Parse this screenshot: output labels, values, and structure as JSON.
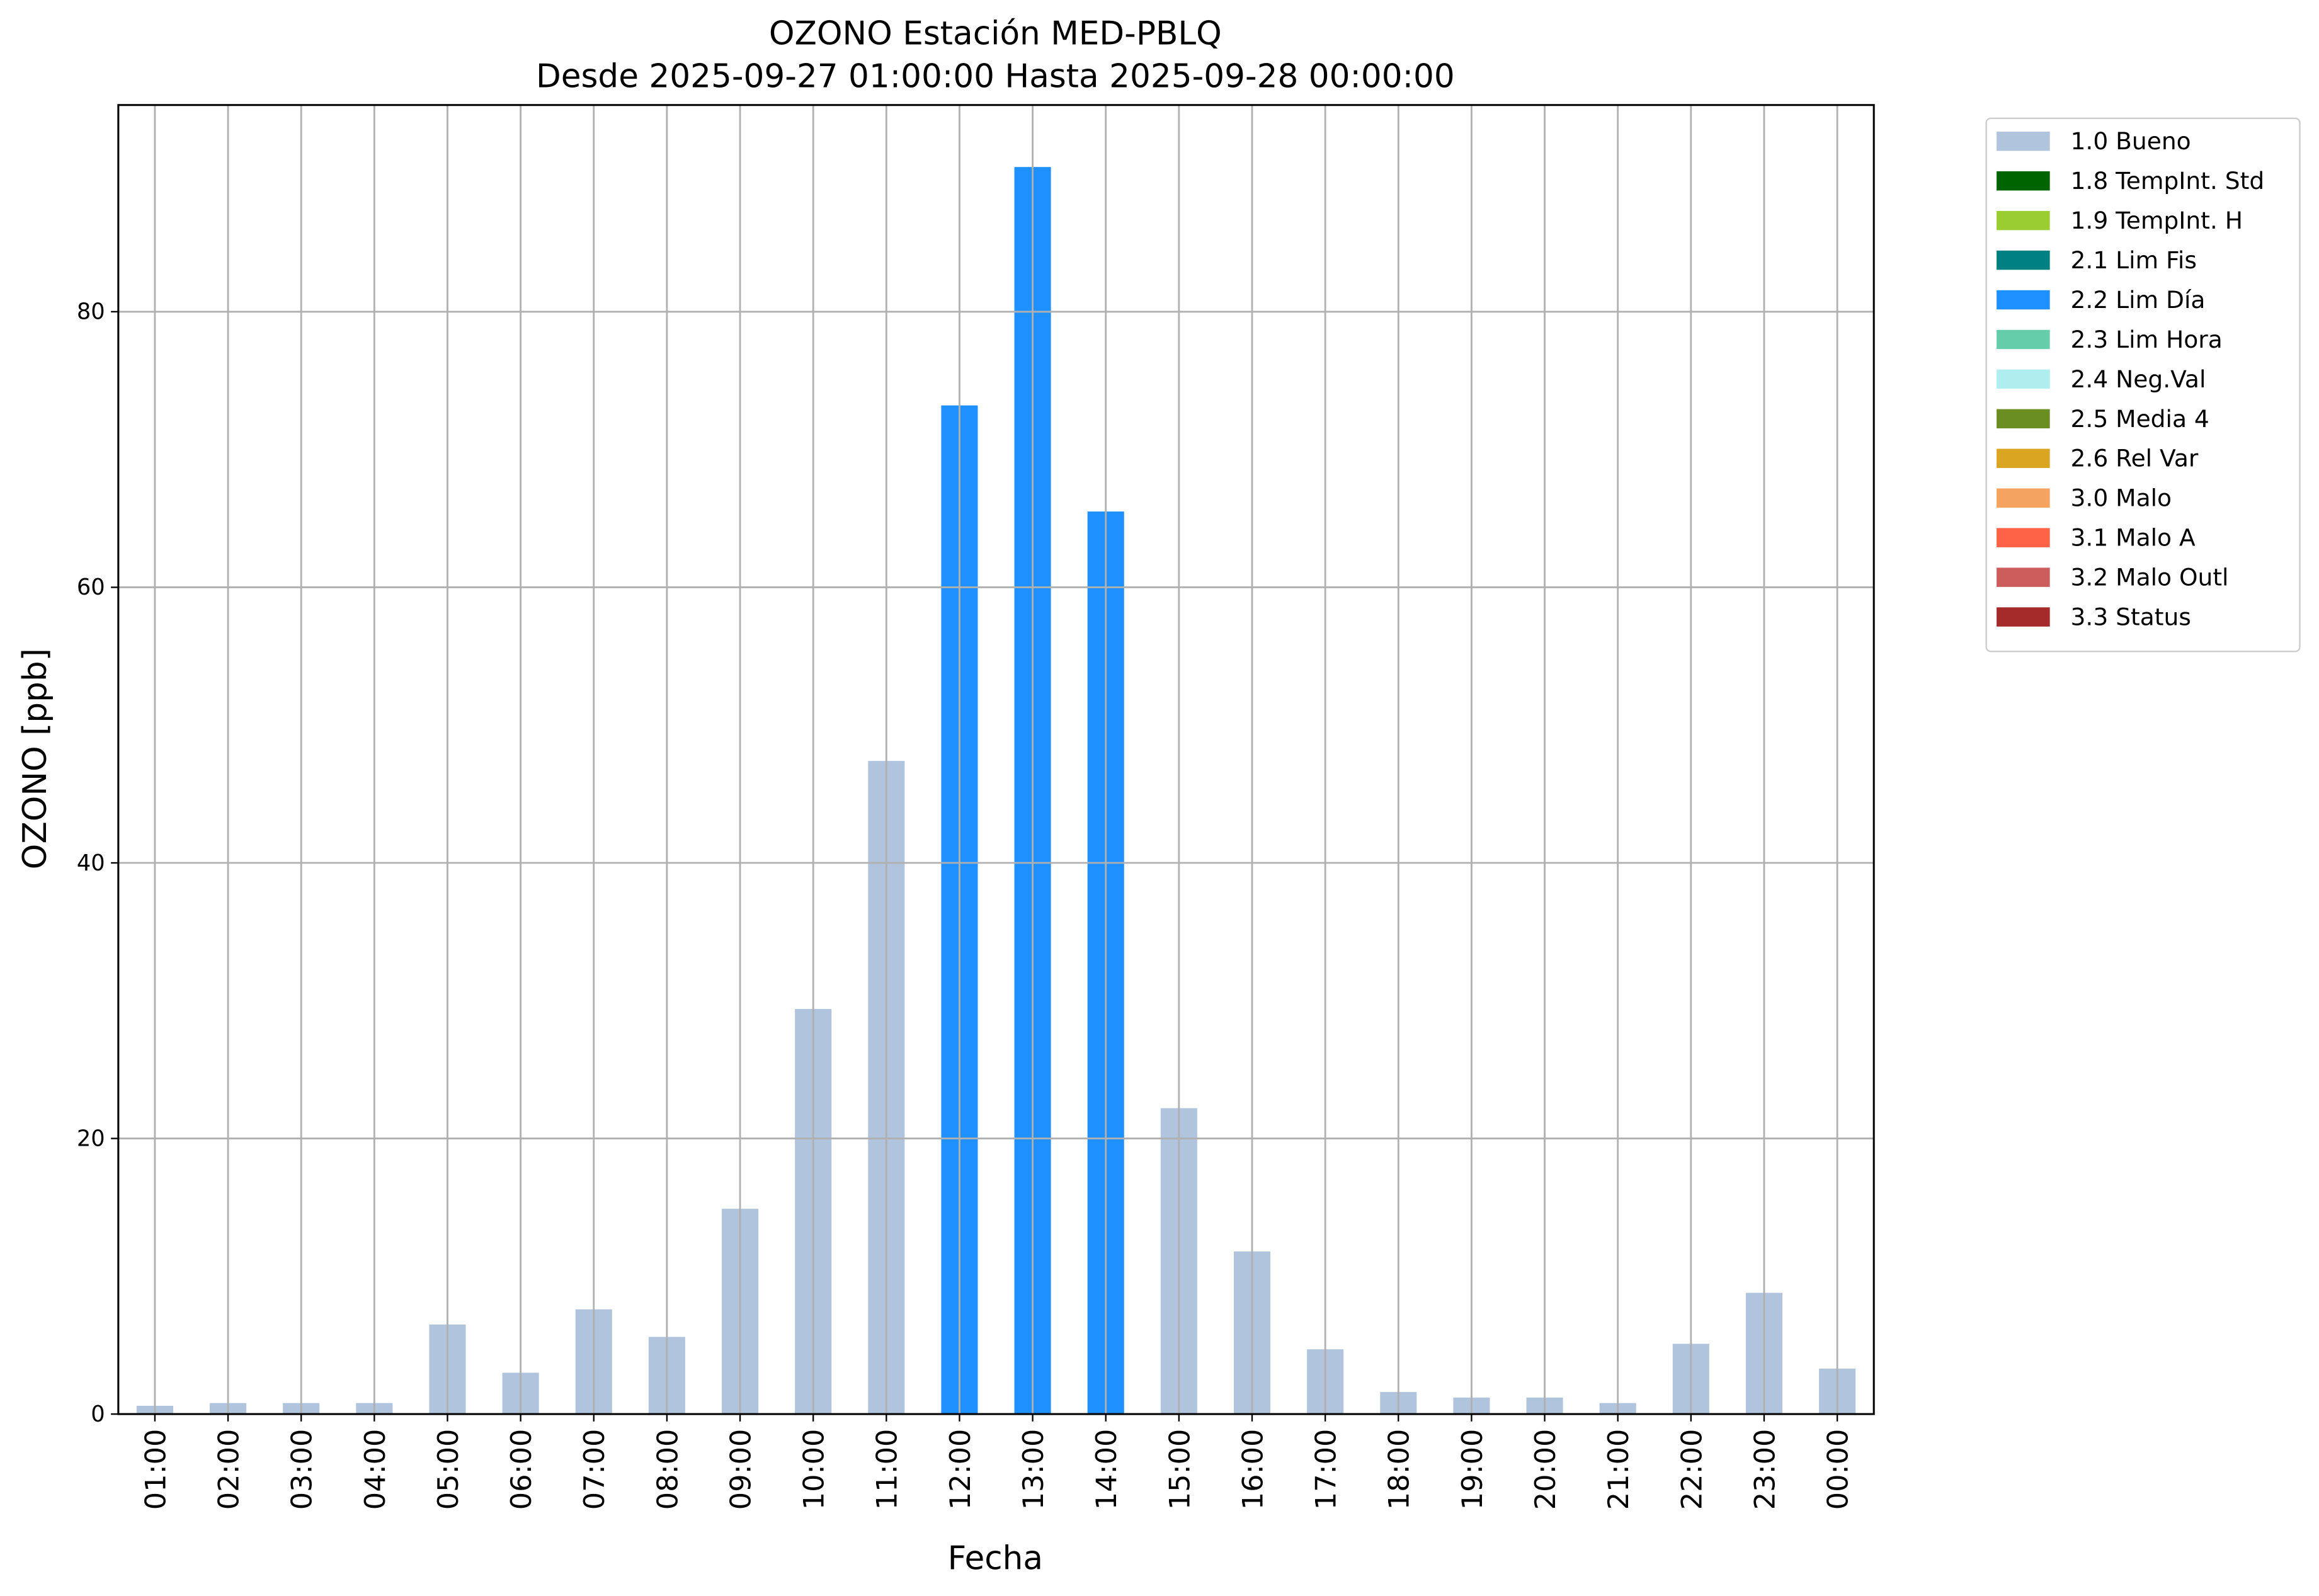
{
  "chart_data": {
    "type": "bar",
    "stacked": true,
    "title": "OZONO Estación MED-PBLQ",
    "subtitle": "Desde 2025-09-27 01:00:00 Hasta 2025-09-28 00:00:00",
    "x_label": "Fecha",
    "y_label": "OZONO [ppb]",
    "categories": [
      "01:00",
      "02:00",
      "03:00",
      "04:00",
      "05:00",
      "06:00",
      "07:00",
      "08:00",
      "09:00",
      "10:00",
      "11:00",
      "12:00",
      "13:00",
      "14:00",
      "15:00",
      "16:00",
      "17:00",
      "18:00",
      "19:00",
      "20:00",
      "21:00",
      "22:00",
      "23:00",
      "00:00"
    ],
    "series": [
      {
        "name": "1.0 Bueno",
        "color": "#b0c4de",
        "values": [
          0.6,
          0.8,
          0.8,
          0.8,
          6.5,
          3.0,
          7.6,
          5.6,
          14.9,
          29.4,
          47.4,
          null,
          null,
          null,
          22.2,
          11.8,
          4.7,
          1.6,
          1.2,
          1.2,
          0.8,
          5.1,
          8.8,
          3.3
        ]
      },
      {
        "name": "1.8 TempInt. Std",
        "color": "#006400",
        "values": [
          null,
          null,
          null,
          null,
          null,
          null,
          null,
          null,
          null,
          null,
          null,
          null,
          null,
          null,
          null,
          null,
          null,
          null,
          null,
          null,
          null,
          null,
          null,
          null
        ]
      },
      {
        "name": "1.9 TempInt. H",
        "color": "#9acd32",
        "values": [
          null,
          null,
          null,
          null,
          null,
          null,
          null,
          null,
          null,
          null,
          null,
          null,
          null,
          null,
          null,
          null,
          null,
          null,
          null,
          null,
          null,
          null,
          null,
          null
        ]
      },
      {
        "name": "2.1 Lim Fis",
        "color": "#008080",
        "values": [
          null,
          null,
          null,
          null,
          null,
          null,
          null,
          null,
          null,
          null,
          null,
          null,
          null,
          null,
          null,
          null,
          null,
          null,
          null,
          null,
          null,
          null,
          null,
          null
        ]
      },
      {
        "name": "2.2 Lim Día",
        "color": "#1e90ff",
        "values": [
          null,
          null,
          null,
          null,
          null,
          null,
          null,
          null,
          null,
          null,
          null,
          73.2,
          90.5,
          65.5,
          null,
          null,
          null,
          null,
          null,
          null,
          null,
          null,
          null,
          null
        ]
      },
      {
        "name": "2.3 Lim Hora",
        "color": "#66cdaa",
        "values": [
          null,
          null,
          null,
          null,
          null,
          null,
          null,
          null,
          null,
          null,
          null,
          null,
          null,
          null,
          null,
          null,
          null,
          null,
          null,
          null,
          null,
          null,
          null,
          null
        ]
      },
      {
        "name": "2.4 Neg.Val",
        "color": "#afeeee",
        "values": [
          null,
          null,
          null,
          null,
          null,
          null,
          null,
          null,
          null,
          null,
          null,
          null,
          null,
          null,
          null,
          null,
          null,
          null,
          null,
          null,
          null,
          null,
          null,
          null
        ]
      },
      {
        "name": "2.5 Media 4",
        "color": "#6b8e23",
        "values": [
          null,
          null,
          null,
          null,
          null,
          null,
          null,
          null,
          null,
          null,
          null,
          null,
          null,
          null,
          null,
          null,
          null,
          null,
          null,
          null,
          null,
          null,
          null,
          null
        ]
      },
      {
        "name": "2.6 Rel Var",
        "color": "#daa520",
        "values": [
          null,
          null,
          null,
          null,
          null,
          null,
          null,
          null,
          null,
          null,
          null,
          null,
          null,
          null,
          null,
          null,
          null,
          null,
          null,
          null,
          null,
          null,
          null,
          null
        ]
      },
      {
        "name": "3.0 Malo",
        "color": "#f4a460",
        "values": [
          null,
          null,
          null,
          null,
          null,
          null,
          null,
          null,
          null,
          null,
          null,
          null,
          null,
          null,
          null,
          null,
          null,
          null,
          null,
          null,
          null,
          null,
          null,
          null
        ]
      },
      {
        "name": "3.1 Malo A",
        "color": "#ff6347",
        "values": [
          null,
          null,
          null,
          null,
          null,
          null,
          null,
          null,
          null,
          null,
          null,
          null,
          null,
          null,
          null,
          null,
          null,
          null,
          null,
          null,
          null,
          null,
          null,
          null
        ]
      },
      {
        "name": "3.2 Malo Outl",
        "color": "#cd5c5c",
        "values": [
          null,
          null,
          null,
          null,
          null,
          null,
          null,
          null,
          null,
          null,
          null,
          null,
          null,
          null,
          null,
          null,
          null,
          null,
          null,
          null,
          null,
          null,
          null,
          null
        ]
      },
      {
        "name": "3.3 Status",
        "color": "#a52a2a",
        "values": [
          null,
          null,
          null,
          null,
          null,
          null,
          null,
          null,
          null,
          null,
          null,
          null,
          null,
          null,
          null,
          null,
          null,
          null,
          null,
          null,
          null,
          null,
          null,
          null
        ]
      }
    ],
    "ylim": [
      0,
      95
    ],
    "yticks": [
      0,
      20,
      40,
      60,
      80
    ],
    "grid": true,
    "legend": "outside upper right"
  }
}
